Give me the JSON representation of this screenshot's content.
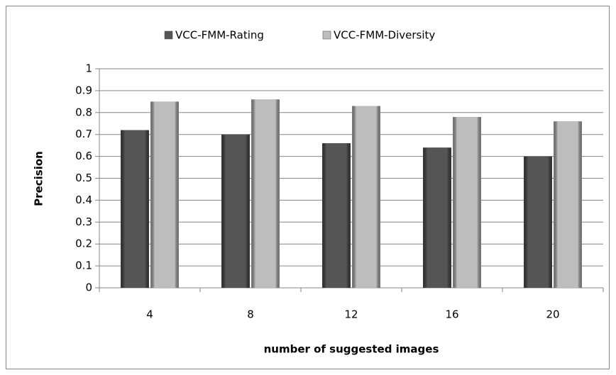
{
  "chart_data": {
    "type": "bar",
    "categories": [
      "4",
      "8",
      "12",
      "16",
      "20"
    ],
    "series": [
      {
        "name": "VCC-FMM-Rating",
        "color": "#555555",
        "values": [
          0.72,
          0.7,
          0.66,
          0.64,
          0.6
        ]
      },
      {
        "name": "VCC-FMM-Diversity",
        "color": "#bdbdbd",
        "values": [
          0.85,
          0.86,
          0.83,
          0.78,
          0.76
        ]
      }
    ],
    "xlabel": "number of suggested images",
    "ylabel": "Precision",
    "ylim": [
      0,
      1
    ],
    "yticks": [
      0,
      0.1,
      0.2,
      0.3,
      0.4,
      0.5,
      0.6,
      0.7,
      0.8,
      0.9,
      1
    ],
    "grid": true,
    "legend": "top"
  }
}
